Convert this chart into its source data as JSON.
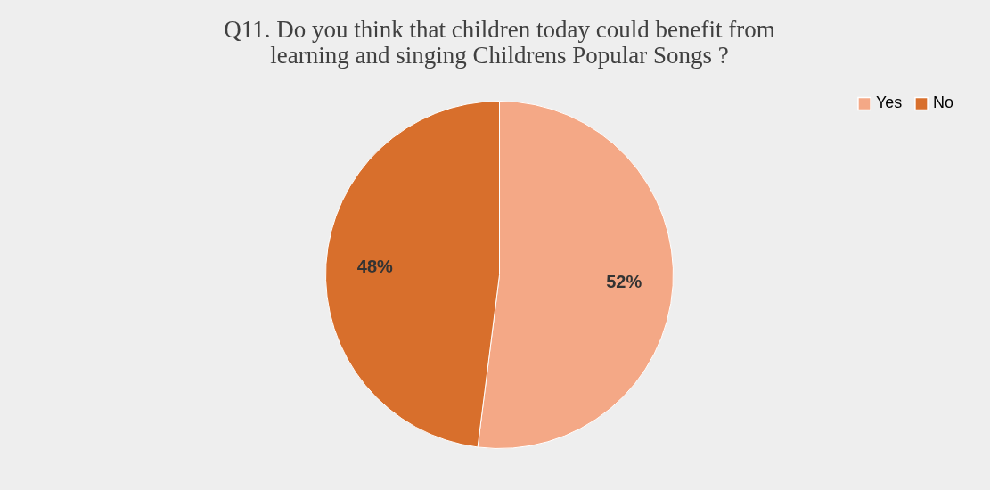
{
  "chart_data": {
    "type": "pie",
    "title": "Q11. Do you think that children today could benefit from learning and singing Childrens Popular Songs ?",
    "categories": [
      "Yes",
      "No"
    ],
    "values": [
      52,
      48
    ],
    "colors": [
      "#f4a886",
      "#d86f2c"
    ],
    "value_labels": [
      "52%",
      "48%"
    ],
    "legend": "right"
  }
}
